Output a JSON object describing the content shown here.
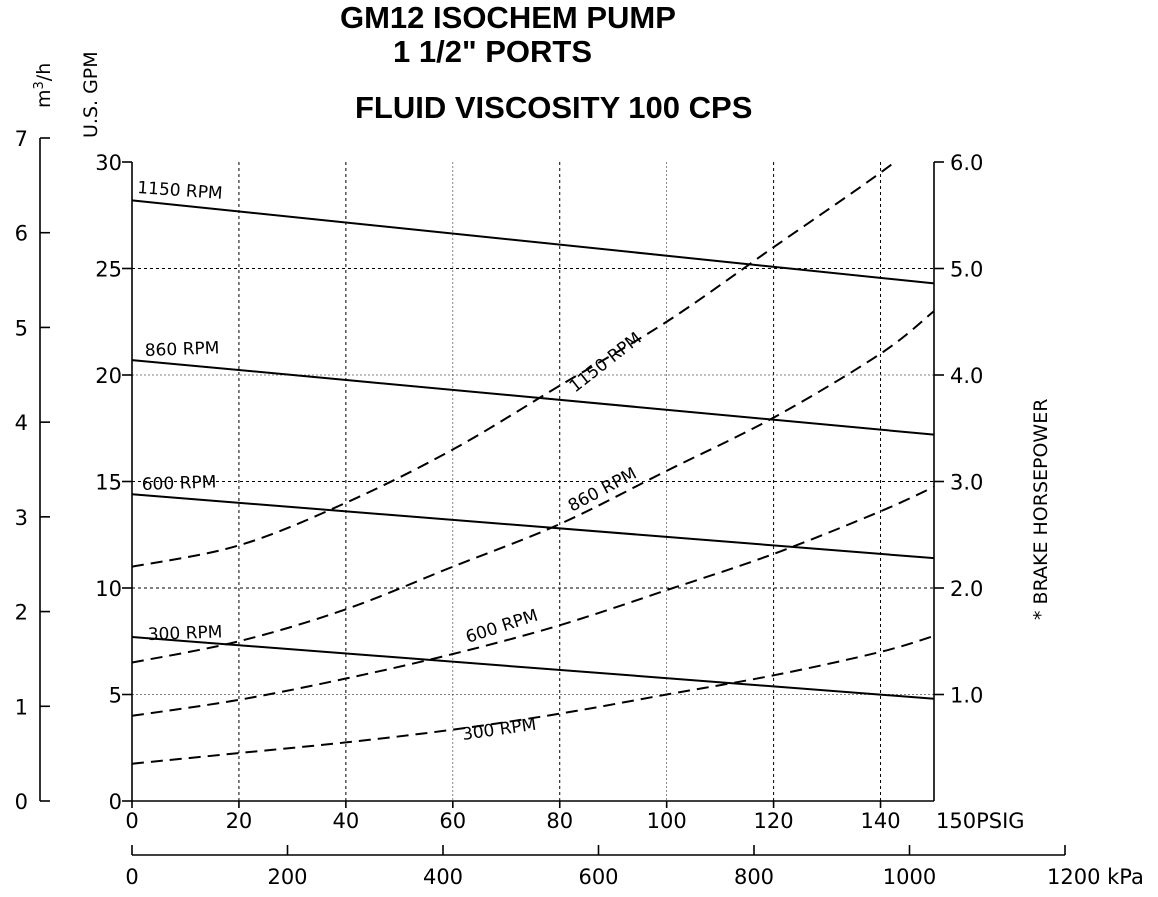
{
  "chart_data": {
    "type": "line",
    "title": "GM12 ISOCHEM PUMP",
    "subtitle": "1 1/2\" PORTS",
    "subtitle2": "FLUID VISCOSITY 100 CPS",
    "x_primary": {
      "unit_label": "PSIG",
      "range": [
        0,
        150
      ],
      "ticks": [
        "0",
        "20",
        "40",
        "60",
        "80",
        "100",
        "120",
        "140",
        "150PSIG"
      ]
    },
    "x_secondary": {
      "unit_label": "kPa",
      "ticks": [
        "0",
        "200",
        "400",
        "600",
        "800",
        "1000",
        "1200 kPa"
      ]
    },
    "y_left": {
      "label": "U.S. GPM",
      "range": [
        0,
        30
      ],
      "ticks": [
        "0",
        "5",
        "10",
        "15",
        "20",
        "25",
        "30"
      ]
    },
    "y_metric": {
      "label": "m³/h",
      "label_base": "m",
      "label_sup": "3",
      "label_tail": "/h",
      "range": [
        0,
        7
      ],
      "ticks": [
        "0",
        "1",
        "2",
        "3",
        "4",
        "5",
        "6",
        "7"
      ]
    },
    "y_right": {
      "label": "* BRAKE HORSEPOWER",
      "range": [
        0,
        6
      ],
      "ticks": [
        "1.0",
        "2.0",
        "3.0",
        "4.0",
        "5.0",
        "6.0"
      ]
    },
    "flow_series": [
      {
        "name": "1150 RPM",
        "x": [
          0,
          150
        ],
        "y": [
          28.2,
          24.3
        ]
      },
      {
        "name": "860 RPM",
        "x": [
          0,
          150
        ],
        "y": [
          20.7,
          17.2
        ]
      },
      {
        "name": "600 RPM",
        "x": [
          0,
          150
        ],
        "y": [
          14.4,
          11.4
        ]
      },
      {
        "name": "300 RPM",
        "x": [
          0,
          150
        ],
        "y": [
          7.7,
          4.8
        ]
      }
    ],
    "power_series": [
      {
        "name": "1150 RPM",
        "x": [
          0,
          20,
          40,
          60,
          80,
          100,
          120,
          140,
          150
        ],
        "y": [
          2.2,
          2.4,
          2.8,
          3.3,
          3.9,
          4.5,
          5.2,
          5.9,
          6.3
        ]
      },
      {
        "name": "860 RPM",
        "x": [
          0,
          20,
          40,
          60,
          80,
          100,
          120,
          140,
          150
        ],
        "y": [
          1.3,
          1.5,
          1.8,
          2.2,
          2.6,
          3.1,
          3.6,
          4.2,
          4.6
        ]
      },
      {
        "name": "600 RPM",
        "x": [
          0,
          20,
          40,
          60,
          80,
          100,
          120,
          140,
          150
        ],
        "y": [
          0.8,
          0.95,
          1.15,
          1.38,
          1.65,
          1.98,
          2.32,
          2.72,
          2.95
        ]
      },
      {
        "name": "300 RPM",
        "x": [
          0,
          20,
          40,
          60,
          80,
          100,
          120,
          140,
          150
        ],
        "y": [
          0.35,
          0.45,
          0.55,
          0.67,
          0.82,
          1.0,
          1.18,
          1.4,
          1.55
        ]
      }
    ]
  }
}
